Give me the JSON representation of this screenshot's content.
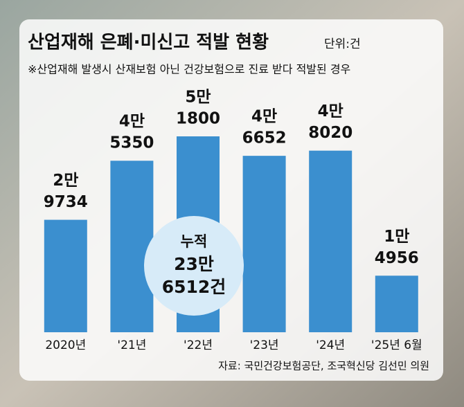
{
  "chart_data": {
    "type": "bar",
    "title": "산업재해 은폐·미신고 적발 현황",
    "unit": "단위:건",
    "subtitle": "※산업재해 발생시 산재보험 아닌 건강보험으로 진료 받다 적발된 경우",
    "categories": [
      "2020년",
      "'21년",
      "'22년",
      "'23년",
      "'24년",
      "'25년 6월"
    ],
    "values": [
      29734,
      45350,
      51800,
      46652,
      48020,
      14956
    ],
    "value_labels": [
      [
        "2만",
        "9734"
      ],
      [
        "4만",
        "5350"
      ],
      [
        "5만",
        "1800"
      ],
      [
        "4만",
        "6652"
      ],
      [
        "4만",
        "8020"
      ],
      [
        "1만",
        "4956"
      ]
    ],
    "color": "#3b8fcf",
    "annotation": [
      "누적",
      "23만",
      "6512건"
    ],
    "source": "자료: 국민건강보험공단, 조국혁신당 김선민 의원"
  }
}
